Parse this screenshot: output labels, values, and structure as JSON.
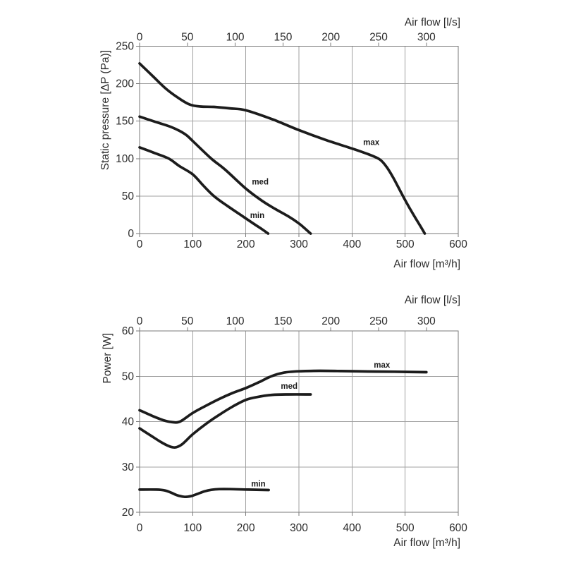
{
  "page": {
    "background": "#ffffff"
  },
  "colors": {
    "curve": "#1c1c1c",
    "grid": "#a0a0a0",
    "axis": "#7a7a7a",
    "text": "#2d2d2d",
    "curve_label": "#1c1c1c"
  },
  "chart_data": [
    {
      "id": "static-pressure",
      "type": "line",
      "ylabel": "Static pressure [ΔP (Pa)]",
      "xlabel_bottom": "Air flow [m³/h]",
      "xlabel_top": "Air flow [l/s]",
      "x_axis_bottom": {
        "unit": "m³/h",
        "min": 0,
        "max": 600,
        "ticks": [
          0,
          100,
          200,
          300,
          400,
          500,
          600
        ]
      },
      "x_axis_top": {
        "unit": "l/s",
        "ticks": [
          0,
          50,
          100,
          150,
          200,
          250,
          300
        ],
        "to_bottom_scale": 1.8
      },
      "y_axis": {
        "unit": "Pa",
        "min": 0,
        "max": 250,
        "ticks": [
          0,
          50,
          100,
          150,
          200,
          250
        ]
      },
      "grid": true,
      "series": [
        {
          "name": "max",
          "points": [
            [
              0,
              227
            ],
            [
              25,
              210
            ],
            [
              50,
              193
            ],
            [
              75,
              180
            ],
            [
              95,
              172
            ],
            [
              115,
              169.5
            ],
            [
              140,
              169
            ],
            [
              170,
              167
            ],
            [
              200,
              164.5
            ],
            [
              250,
              152.5
            ],
            [
              300,
              138
            ],
            [
              350,
              125
            ],
            [
              400,
              113.5
            ],
            [
              430,
              106
            ],
            [
              452,
              99
            ],
            [
              465,
              89
            ],
            [
              478,
              74
            ],
            [
              490,
              58
            ],
            [
              502,
              42
            ],
            [
              515,
              26
            ],
            [
              527,
              12
            ],
            [
              537,
              0
            ]
          ]
        },
        {
          "name": "med",
          "points": [
            [
              0,
              156
            ],
            [
              30,
              149
            ],
            [
              60,
              142
            ],
            [
              85,
              133
            ],
            [
              100,
              123.5
            ],
            [
              135,
              100
            ],
            [
              160,
              86
            ],
            [
              200,
              60
            ],
            [
              230,
              44
            ],
            [
              255,
              33
            ],
            [
              280,
              23
            ],
            [
              300,
              13.5
            ],
            [
              311,
              7
            ],
            [
              322,
              0
            ]
          ]
        },
        {
          "name": "min",
          "points": [
            [
              0,
              115
            ],
            [
              30,
              107
            ],
            [
              55,
              100
            ],
            [
              75,
              90
            ],
            [
              100,
              79
            ],
            [
              120,
              64
            ],
            [
              140,
              50
            ],
            [
              165,
              37
            ],
            [
              190,
              25
            ],
            [
              215,
              13
            ],
            [
              230,
              6
            ],
            [
              242,
              0
            ]
          ]
        }
      ],
      "series_labels": [
        {
          "text": "max",
          "x": 421,
          "y": 118
        },
        {
          "text": "med",
          "x": 211.5,
          "y": 65.5
        },
        {
          "text": "min",
          "x": 208,
          "y": 20.5
        }
      ]
    },
    {
      "id": "power",
      "type": "line",
      "ylabel": "Power [W]",
      "xlabel_bottom": "Air flow [m³/h]",
      "xlabel_top": "Air flow [l/s]",
      "x_axis_bottom": {
        "unit": "m³/h",
        "min": 0,
        "max": 600,
        "ticks": [
          0,
          100,
          200,
          300,
          400,
          500,
          600
        ]
      },
      "x_axis_top": {
        "unit": "l/s",
        "ticks": [
          0,
          50,
          100,
          150,
          200,
          250,
          300
        ],
        "to_bottom_scale": 1.8
      },
      "y_axis": {
        "unit": "W",
        "min": 20,
        "max": 60,
        "ticks": [
          20,
          30,
          40,
          50,
          60
        ]
      },
      "grid": true,
      "series": [
        {
          "name": "max",
          "points": [
            [
              0,
              42.5
            ],
            [
              25,
              41.2
            ],
            [
              45,
              40.3
            ],
            [
              60,
              39.9
            ],
            [
              76,
              40.0
            ],
            [
              100,
              41.9
            ],
            [
              125,
              43.5
            ],
            [
              150,
              45
            ],
            [
              175,
              46.3
            ],
            [
              200,
              47.4
            ],
            [
              225,
              48.7
            ],
            [
              248,
              50
            ],
            [
              272,
              50.8
            ],
            [
              300,
              51.1
            ],
            [
              340,
              51.2
            ],
            [
              380,
              51.15
            ],
            [
              430,
              51.05
            ],
            [
              480,
              51
            ],
            [
              540,
              50.9
            ]
          ]
        },
        {
          "name": "med",
          "points": [
            [
              0,
              38.5
            ],
            [
              20,
              37
            ],
            [
              40,
              35.5
            ],
            [
              55,
              34.6
            ],
            [
              67,
              34.3
            ],
            [
              80,
              35
            ],
            [
              100,
              37.2
            ],
            [
              125,
              39.5
            ],
            [
              150,
              41.5
            ],
            [
              175,
              43.3
            ],
            [
              200,
              44.8
            ],
            [
              225,
              45.5
            ],
            [
              250,
              45.9
            ],
            [
              280,
              46
            ],
            [
              322,
              46
            ]
          ]
        },
        {
          "name": "min",
          "points": [
            [
              0,
              25
            ],
            [
              32,
              25
            ],
            [
              48,
              24.8
            ],
            [
              60,
              24.3
            ],
            [
              72,
              23.7
            ],
            [
              85,
              23.4
            ],
            [
              98,
              23.6
            ],
            [
              110,
              24.1
            ],
            [
              122,
              24.6
            ],
            [
              135,
              24.95
            ],
            [
              150,
              25.1
            ],
            [
              170,
              25.1
            ],
            [
              205,
              25
            ],
            [
              243,
              24.9
            ]
          ]
        }
      ],
      "series_labels": [
        {
          "text": "max",
          "x": 441,
          "y": 51.9
        },
        {
          "text": "med",
          "x": 266,
          "y": 47.2
        },
        {
          "text": "min",
          "x": 210,
          "y": 25.7
        }
      ]
    }
  ]
}
